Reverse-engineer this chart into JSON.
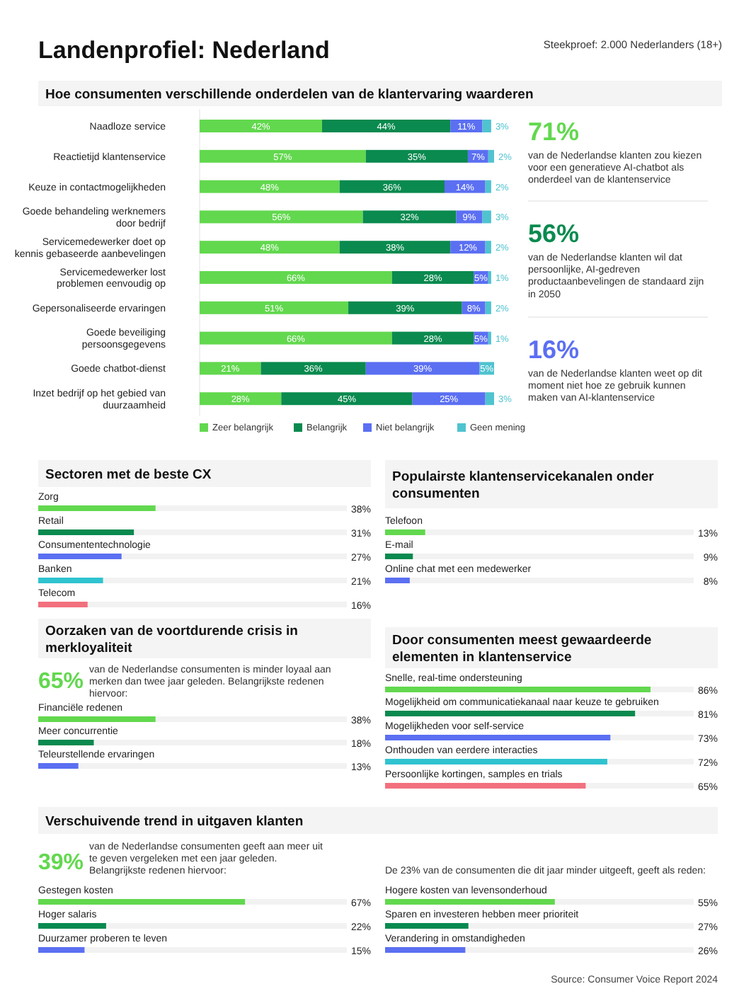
{
  "chart_data": [
    {
      "type": "bar",
      "orientation": "horizontal",
      "stacked": true,
      "title": "Hoe consumenten verschillende onderdelen van de klantervaring waarderen",
      "annotations": [
        "Landenprofiel: Nederland",
        "Steekproef: 2.000 Nederlanders (18+)"
      ],
      "legend": "bottom",
      "categories": [
        "Naadloze service",
        "Reactietijd klantenservice",
        "Keuze in contactmogelijkheden",
        "Goede behandeling werknemers door bedrijf",
        "Servicemedewerker doet op kennis gebaseerde aanbevelingen",
        "Servicemedewerker lost problemen eenvoudig op",
        "Gepersonaliseerde ervaringen",
        "Goede beveiliging persoonsgegevens",
        "Goede chatbot-dienst",
        "Inzet bedrijf op het gebied van duurzaamheid"
      ],
      "series": [
        {
          "name": "Zeer belangrijk",
          "color": "#62d84e",
          "values": [
            42,
            57,
            48,
            56,
            48,
            66,
            51,
            66,
            21,
            28
          ],
          "value_labels": [
            "42%",
            "57%",
            "48%",
            "56%",
            "48%",
            "66%",
            "51%",
            "66%",
            "21%",
            "28%"
          ]
        },
        {
          "name": "Belangrijk",
          "color": "#0a8a4f",
          "values": [
            44,
            35,
            36,
            32,
            38,
            28,
            39,
            28,
            36,
            45
          ],
          "value_labels": [
            "44%",
            "35%",
            "36%",
            "32%",
            "38%",
            "28%",
            "39%",
            "28%",
            "36%",
            "45%"
          ]
        },
        {
          "name": "Niet belangrijk",
          "color": "#5b6ff2",
          "values": [
            11,
            7,
            14,
            9,
            12,
            5,
            8,
            5,
            39,
            25
          ],
          "value_labels": [
            "11%",
            "7%",
            "14%",
            "9%",
            "12%",
            "5%",
            "8%",
            "5%",
            "39%",
            "25%"
          ]
        },
        {
          "name": "Geen mening",
          "color": "#4fc3cf",
          "values": [
            3,
            2,
            2,
            3,
            2,
            1,
            2,
            1,
            5,
            3
          ],
          "value_labels": [
            "3%",
            "2%",
            "2%",
            "3%",
            "2%",
            "1%",
            "2%",
            "1%",
            "5%",
            "3%"
          ]
        }
      ]
    },
    {
      "type": "other",
      "colors": [
        "#62d84e",
        "#0a8a4f",
        "#5b6ff2"
      ],
      "annotations": [
        "71%",
        "van de Nederlandse klanten zou kiezen voor een generatieve AI-chatbot als onderdeel van de klantenservice",
        "56%",
        "van de Nederlandse klanten wil dat persoonlijke, AI-gedreven productaanbevelingen de standaard zijn in 2050",
        "16%",
        "van de Nederlandse klanten weet op dit moment niet hoe ze gebruik kunnen maken van AI-klantenservice"
      ]
    },
    {
      "type": "bar",
      "orientation": "horizontal",
      "title": "Sectoren met de beste CX",
      "xlim": [
        0,
        100
      ],
      "categories": [
        "Zorg",
        "Retail",
        "Consumententechnologie",
        "Banken",
        "Telecom"
      ],
      "values": [
        38,
        31,
        27,
        21,
        16
      ],
      "value_labels": [
        "38%",
        "31%",
        "27%",
        "21%",
        "16%"
      ],
      "colors": [
        "#62d84e",
        "#0a8a4f",
        "#5b6ff2",
        "#2fc3d0",
        "#f2707e"
      ]
    },
    {
      "type": "bar",
      "orientation": "horizontal",
      "title": "Populairste klantenservicekanalen onder consumenten",
      "xlim": [
        0,
        100
      ],
      "categories": [
        "Telefoon",
        "E-mail",
        "Online chat met een medewerker"
      ],
      "values": [
        13,
        9,
        8
      ],
      "value_labels": [
        "13%",
        "9%",
        "8%"
      ],
      "colors": [
        "#62d84e",
        "#0a8a4f",
        "#5b6ff2"
      ]
    },
    {
      "type": "bar",
      "orientation": "horizontal",
      "title": "Oorzaken van de voortdurende crisis in merkloyaliteit",
      "annotations": [
        "65%",
        "van de Nederlandse consumenten is minder loyaal aan merken dan twee jaar geleden. Belangrijkste redenen hiervoor:"
      ],
      "xlim": [
        0,
        100
      ],
      "categories": [
        "Financiële redenen",
        "Meer concurrentie",
        "Teleurstellende ervaringen"
      ],
      "values": [
        38,
        18,
        13
      ],
      "value_labels": [
        "38%",
        "18%",
        "13%"
      ],
      "colors": [
        "#62d84e",
        "#0a8a4f",
        "#5b6ff2"
      ]
    },
    {
      "type": "bar",
      "orientation": "horizontal",
      "title": "Door consumenten meest gewaardeerde elementen in klantenservice",
      "xlim": [
        0,
        100
      ],
      "categories": [
        "Snelle, real-time ondersteuning",
        "Mogelijkheid om communicatiekanaal naar keuze te gebruiken",
        "Mogelijkheden voor self-service",
        "Onthouden van eerdere interacties",
        "Persoonlijke kortingen, samples en trials"
      ],
      "values": [
        86,
        81,
        73,
        72,
        65
      ],
      "value_labels": [
        "86%",
        "81%",
        "73%",
        "72%",
        "65%"
      ],
      "colors": [
        "#62d84e",
        "#0a8a4f",
        "#5b6ff2",
        "#2fc3d0",
        "#f2707e"
      ]
    },
    {
      "type": "bar",
      "orientation": "horizontal",
      "title": "Verschuivende trend in uitgaven klanten",
      "annotations": [
        "39%",
        "van de Nederlandse consumenten geeft aan meer uit te geven vergeleken met een jaar geleden. Belangrijkste redenen hiervoor:"
      ],
      "xlim": [
        0,
        100
      ],
      "categories": [
        "Gestegen kosten",
        "Hoger salaris",
        "Duurzamer proberen te leven"
      ],
      "values": [
        67,
        22,
        15
      ],
      "value_labels": [
        "67%",
        "22%",
        "15%"
      ],
      "colors": [
        "#62d84e",
        "#0a8a4f",
        "#5b6ff2"
      ]
    },
    {
      "type": "bar",
      "orientation": "horizontal",
      "subtitle": "De 23% van de consumenten die dit jaar minder uitgeeft, geeft als reden:",
      "annotations": [
        "Source: Consumer Voice Report 2024"
      ],
      "xlim": [
        0,
        100
      ],
      "categories": [
        "Hogere kosten van levensonderhoud",
        "Sparen en investeren hebben meer prioriteit",
        "Verandering in omstandigheden"
      ],
      "values": [
        55,
        27,
        26
      ],
      "value_labels": [
        "55%",
        "27%",
        "26%"
      ],
      "colors": [
        "#62d84e",
        "#0a8a4f",
        "#5b6ff2"
      ]
    }
  ]
}
